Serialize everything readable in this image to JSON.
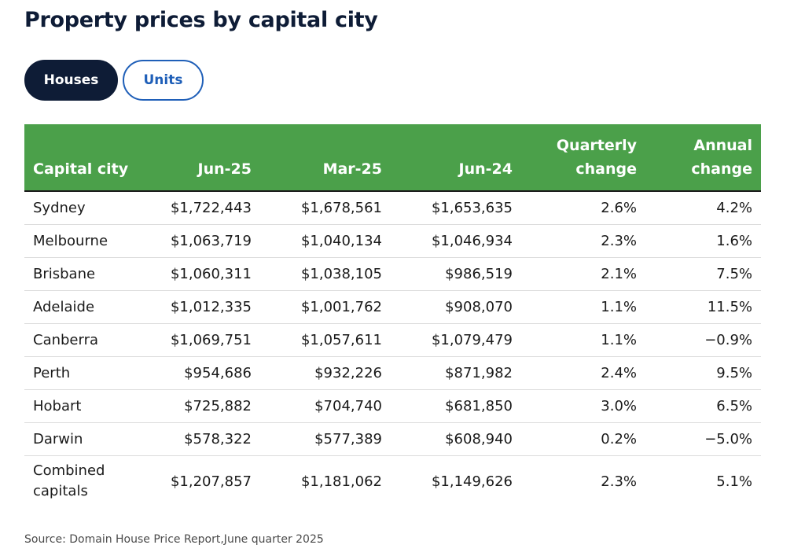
{
  "chart_data": {
    "type": "table",
    "title": "Property prices by capital city",
    "toggles": [
      {
        "label": "Houses",
        "active": true
      },
      {
        "label": "Units",
        "active": false
      }
    ],
    "columns": [
      "Capital city",
      "Jun-25",
      "Mar-25",
      "Jun-24",
      "Quarterly change",
      "Annual change"
    ],
    "rows": [
      [
        "Sydney",
        "$1,722,443",
        "$1,678,561",
        "$1,653,635",
        "2.6%",
        "4.2%"
      ],
      [
        "Melbourne",
        "$1,063,719",
        "$1,040,134",
        "$1,046,934",
        "2.3%",
        "1.6%"
      ],
      [
        "Brisbane",
        "$1,060,311",
        "$1,038,105",
        "$986,519",
        "2.1%",
        "7.5%"
      ],
      [
        "Adelaide",
        "$1,012,335",
        "$1,001,762",
        "$908,070",
        "1.1%",
        "11.5%"
      ],
      [
        "Canberra",
        "$1,069,751",
        "$1,057,611",
        "$1,079,479",
        "1.1%",
        "−0.9%"
      ],
      [
        "Perth",
        "$954,686",
        "$932,226",
        "$871,982",
        "2.4%",
        "9.5%"
      ],
      [
        "Hobart",
        "$725,882",
        "$704,740",
        "$681,850",
        "3.0%",
        "6.5%"
      ],
      [
        "Darwin",
        "$578,322",
        "$577,389",
        "$608,940",
        "0.2%",
        "−5.0%"
      ],
      [
        "Combined capitals",
        "$1,207,857",
        "$1,181,062",
        "$1,149,626",
        "2.3%",
        "5.1%"
      ]
    ],
    "source": "Source: Domain House Price Report,June quarter 2025"
  },
  "colors": {
    "header_bg": "#4ba04a",
    "active_toggle": "#0e1c36",
    "inactive_toggle_border": "#1f5fb8",
    "title": "#0e1c36"
  }
}
